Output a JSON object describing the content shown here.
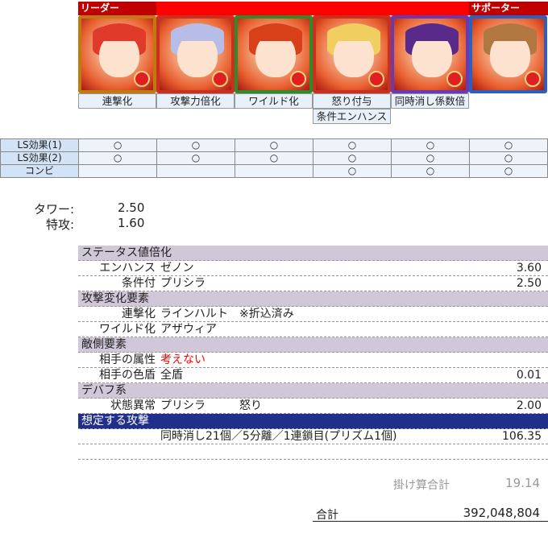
{
  "team": {
    "leader_label": "リーダー",
    "supporter_label": "サポーター",
    "members": [
      {
        "role_label": "連撃化",
        "hair": "#e03a2a",
        "frame": "#c07a10"
      },
      {
        "role_label": "攻撃力倍化",
        "hair": "#b8bde8",
        "frame": "#c83020"
      },
      {
        "role_label": "ワイルド化",
        "hair": "#d8401a",
        "frame": "#2f8a2a"
      },
      {
        "role_label": "怒り付与",
        "role_label2": "条件エンハンス",
        "hair": "#f0cf60",
        "frame": "#c83020"
      },
      {
        "role_label": "同時消し係数倍",
        "hair": "#5a2a8a",
        "frame": "#6a3ab0"
      },
      {
        "role_label": "",
        "hair": "#b07840",
        "frame": "#2a60c0"
      }
    ]
  },
  "ls_table": {
    "rows": [
      {
        "label": "LS効果(1)",
        "cells": [
          "○",
          "○",
          "○",
          "○",
          "○",
          "○"
        ]
      },
      {
        "label": "LS効果(2)",
        "cells": [
          "○",
          "○",
          "○",
          "○",
          "○",
          "○"
        ]
      },
      {
        "label": "コンビ",
        "cells": [
          "",
          "",
          "",
          "○",
          "○",
          "○"
        ]
      }
    ]
  },
  "bonus": {
    "tower_label": "タワー:",
    "tower_value": "2.50",
    "special_label": "特攻:",
    "special_value": "1.60"
  },
  "calc": {
    "rows": [
      {
        "type": "sec",
        "k": "ステータス値倍化"
      },
      {
        "k": "エンハンス",
        "v": "ゼノン",
        "n": "3.60"
      },
      {
        "k": "条件付",
        "v": "プリシラ",
        "n": "2.50"
      },
      {
        "type": "sec",
        "k": "攻撃変化要素"
      },
      {
        "k": "連撃化",
        "v": "ラインハルト　※折込済み",
        "n": ""
      },
      {
        "k": "ワイルド化",
        "v": "アザウィア",
        "n": ""
      },
      {
        "type": "sec",
        "k": "敵側要素"
      },
      {
        "k": "相手の属性",
        "v": "考えない",
        "n": "",
        "red": true
      },
      {
        "k": "相手の色盾",
        "v": "全盾",
        "n": "0.01"
      },
      {
        "type": "sec",
        "k": "デバフ系"
      },
      {
        "k": "状態異常",
        "v": "プリシラ　　　怒り",
        "n": "2.00"
      },
      {
        "type": "navy",
        "k": "想定する攻撃"
      },
      {
        "k": "",
        "v": "同時消し21個／5分離／1連鎖目(プリズム1個)",
        "n": "106.35"
      },
      {
        "k": "",
        "v": "",
        "n": ""
      }
    ],
    "product_label": "掛け算合計",
    "product_value": "19.14",
    "total_label": "合計",
    "total_value": "392,048,804"
  },
  "colors": {
    "header_red": "#ff0000",
    "header_dark": "#c00000",
    "red_text": "#ff0000",
    "navy": "#1f2f8a"
  }
}
